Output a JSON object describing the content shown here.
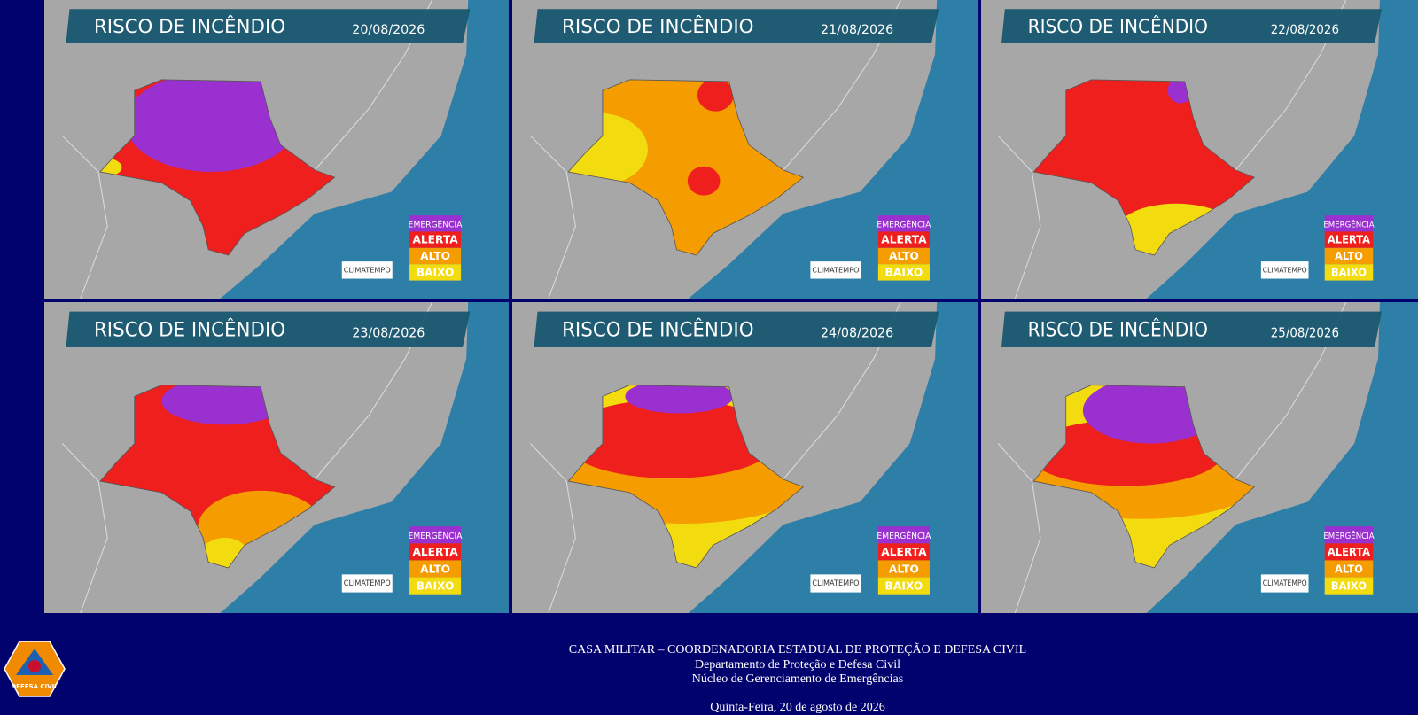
{
  "panels": [
    {
      "title": "RISCO DE INCÊNDIO",
      "date": "20/08/2026",
      "legend": [
        "EMERGÊNCIA",
        "ALERTA",
        "ALTO",
        "BAIXO"
      ],
      "brand": "CLIMATEMPO"
    },
    {
      "title": "RISCO DE INCÊNDIO",
      "date": "21/08/2026",
      "legend": [
        "EMERGÊNCIA",
        "ALERTA",
        "ALTO",
        "BAIXO"
      ],
      "brand": "CLIMATEMPO"
    },
    {
      "title": "RISCO DE INCÊNDIO",
      "date": "22/08/2026",
      "legend": [
        "EMERGÊNCIA",
        "ALERTA",
        "ALTO",
        "BAIXO"
      ],
      "brand": "CLIMATEMPO"
    },
    {
      "title": "RISCO DE INCÊNDIO",
      "date": "23/08/2026",
      "legend": [
        "EMERGÊNCIA",
        "ALERTA",
        "ALTO",
        "BAIXO"
      ],
      "brand": "CLIMATEMPO"
    },
    {
      "title": "RISCO DE INCÊNDIO",
      "date": "24/08/2026",
      "legend": [
        "EMERGÊNCIA",
        "ALERTA",
        "ALTO",
        "BAIXO"
      ],
      "brand": "CLIMATEMPO"
    },
    {
      "title": "RISCO DE INCÊNDIO",
      "date": "25/08/2026",
      "legend": [
        "EMERGÊNCIA",
        "ALERTA",
        "ALTO",
        "BAIXO"
      ],
      "brand": "CLIMATEMPO"
    }
  ],
  "footer": {
    "logo_text": "DEFESA CIVIL",
    "lines": [
      "CASA MILITAR – COORDENADORIA ESTADUAL DE PROTEÇÃO E DEFESA CIVIL",
      "Departamento de Proteção e Defesa Civil",
      "Núcleo de Gerenciamento de Emergências"
    ],
    "date": "Quinta-Feira, 20 de agosto de 2026"
  }
}
